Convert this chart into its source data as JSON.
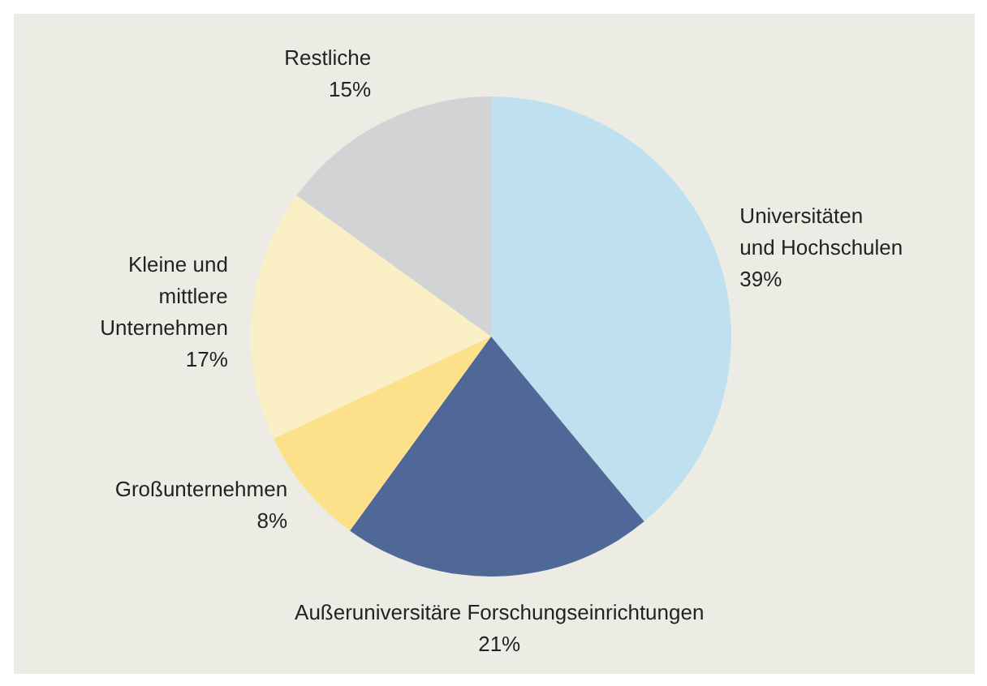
{
  "chart_data": {
    "type": "pie",
    "categories": [
      "Universitäten und Hochschulen",
      "Außeruniversitäre Forschungseinrichtungen",
      "Großunternehmen",
      "Kleine und mittlere Unternehmen",
      "Restliche"
    ],
    "values": [
      39,
      21,
      8,
      17,
      15
    ],
    "colors": [
      "#bfe0ef",
      "#4f6897",
      "#fde08a",
      "#fbefc6",
      "#d2d3d5"
    ],
    "value_labels": [
      "39%",
      "21%",
      "8%",
      "17%",
      "15%"
    ]
  }
}
